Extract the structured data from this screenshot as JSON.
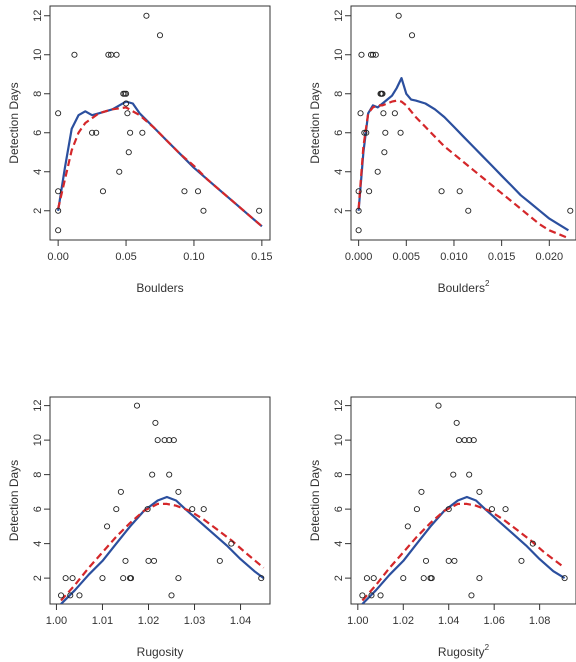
{
  "chart_data": [
    {
      "type": "scatter",
      "xlabel": "Boulders",
      "xlabel_sup": "",
      "ylabel": "Detection Days",
      "xlim": [
        -0.006,
        0.156
      ],
      "ylim": [
        0.5,
        12.5
      ],
      "xticks": [
        0.0,
        0.05,
        0.1,
        0.15
      ],
      "xtick_labels": [
        "0.00",
        "0.05",
        "0.10",
        "0.15"
      ],
      "yticks": [
        2,
        4,
        6,
        8,
        10,
        12
      ],
      "ytick_labels": [
        "2",
        "4",
        "6",
        "8",
        "10",
        "12"
      ],
      "points": [
        [
          0.0,
          1
        ],
        [
          0.0,
          2
        ],
        [
          0.0,
          3
        ],
        [
          0.0,
          7
        ],
        [
          0.012,
          10
        ],
        [
          0.025,
          6
        ],
        [
          0.028,
          6
        ],
        [
          0.033,
          3
        ],
        [
          0.037,
          10
        ],
        [
          0.039,
          10
        ],
        [
          0.043,
          10
        ],
        [
          0.045,
          4
        ],
        [
          0.048,
          8
        ],
        [
          0.049,
          8
        ],
        [
          0.05,
          8
        ],
        [
          0.05,
          7.5
        ],
        [
          0.051,
          7
        ],
        [
          0.052,
          5
        ],
        [
          0.053,
          6
        ],
        [
          0.062,
          6
        ],
        [
          0.065,
          12
        ],
        [
          0.075,
          11
        ],
        [
          0.093,
          3
        ],
        [
          0.103,
          3
        ],
        [
          0.107,
          2
        ],
        [
          0.148,
          2
        ]
      ],
      "series": [
        {
          "style": "solid",
          "color": "#2b4f9e",
          "x": [
            0.0,
            0.005,
            0.01,
            0.015,
            0.02,
            0.025,
            0.03,
            0.035,
            0.04,
            0.045,
            0.05,
            0.055,
            0.06,
            0.07,
            0.08,
            0.09,
            0.1,
            0.11,
            0.12,
            0.13,
            0.14,
            0.15
          ],
          "y": [
            2.0,
            4.2,
            6.2,
            6.9,
            7.1,
            6.9,
            7.0,
            7.1,
            7.2,
            7.4,
            7.6,
            7.5,
            7.0,
            6.3,
            5.6,
            4.9,
            4.2,
            3.6,
            3.0,
            2.4,
            1.8,
            1.2
          ]
        },
        {
          "style": "dashed",
          "color": "#d4272a",
          "x": [
            0.0,
            0.005,
            0.01,
            0.015,
            0.02,
            0.03,
            0.04,
            0.05,
            0.06,
            0.07,
            0.08,
            0.09,
            0.1,
            0.11,
            0.12,
            0.13,
            0.14,
            0.15
          ],
          "y": [
            2.1,
            3.6,
            5.1,
            6.0,
            6.5,
            7.0,
            7.2,
            7.3,
            6.9,
            6.3,
            5.6,
            4.9,
            4.3,
            3.6,
            3.0,
            2.4,
            1.8,
            1.2
          ]
        }
      ]
    },
    {
      "type": "scatter",
      "xlabel": "Boulders",
      "xlabel_sup": "2",
      "ylabel": "Detection Days",
      "xlim": [
        -0.0008,
        0.0228
      ],
      "ylim": [
        0.5,
        12.5
      ],
      "xticks": [
        0.0,
        0.005,
        0.01,
        0.015,
        0.02
      ],
      "xtick_labels": [
        "0.000",
        "0.005",
        "0.010",
        "0.015",
        "0.020"
      ],
      "yticks": [
        2,
        4,
        6,
        8,
        10,
        12
      ],
      "ytick_labels": [
        "2",
        "4",
        "6",
        "8",
        "10",
        "12"
      ],
      "points": [
        [
          0.0,
          1
        ],
        [
          0.0,
          2
        ],
        [
          0.0,
          3
        ],
        [
          0.0002,
          7
        ],
        [
          0.0003,
          10
        ],
        [
          0.0006,
          6
        ],
        [
          0.0008,
          6
        ],
        [
          0.0011,
          3
        ],
        [
          0.0013,
          10
        ],
        [
          0.0015,
          10
        ],
        [
          0.0018,
          10
        ],
        [
          0.002,
          4
        ],
        [
          0.0023,
          8
        ],
        [
          0.0024,
          8
        ],
        [
          0.0025,
          8
        ],
        [
          0.0026,
          7
        ],
        [
          0.0027,
          5
        ],
        [
          0.0028,
          6
        ],
        [
          0.0038,
          7
        ],
        [
          0.0042,
          12
        ],
        [
          0.0044,
          6
        ],
        [
          0.0056,
          11
        ],
        [
          0.0087,
          3
        ],
        [
          0.0106,
          3
        ],
        [
          0.0115,
          2
        ],
        [
          0.0222,
          2
        ]
      ],
      "series": [
        {
          "style": "solid",
          "color": "#2b4f9e",
          "x": [
            0.0,
            0.0005,
            0.001,
            0.0015,
            0.002,
            0.0025,
            0.003,
            0.0035,
            0.004,
            0.0045,
            0.005,
            0.0055,
            0.006,
            0.007,
            0.008,
            0.009,
            0.01,
            0.011,
            0.012,
            0.013,
            0.014,
            0.015,
            0.016,
            0.017,
            0.018,
            0.019,
            0.02,
            0.021,
            0.022
          ],
          "y": [
            2.0,
            5.0,
            7.0,
            7.4,
            7.3,
            7.5,
            7.7,
            7.9,
            8.3,
            8.8,
            8.0,
            7.7,
            7.65,
            7.5,
            7.2,
            6.8,
            6.3,
            5.8,
            5.3,
            4.8,
            4.3,
            3.8,
            3.3,
            2.8,
            2.4,
            2.0,
            1.6,
            1.3,
            1.0
          ]
        },
        {
          "style": "dashed",
          "color": "#d4272a",
          "x": [
            0.0,
            0.0005,
            0.001,
            0.0015,
            0.002,
            0.0025,
            0.003,
            0.0035,
            0.004,
            0.0045,
            0.005,
            0.006,
            0.007,
            0.008,
            0.009,
            0.01,
            0.011,
            0.012,
            0.013,
            0.014,
            0.015,
            0.016,
            0.017,
            0.018,
            0.019,
            0.02,
            0.021,
            0.022
          ],
          "y": [
            2.1,
            5.3,
            7.0,
            7.3,
            7.4,
            7.4,
            7.5,
            7.6,
            7.65,
            7.6,
            7.4,
            6.8,
            6.3,
            5.8,
            5.3,
            4.9,
            4.5,
            4.1,
            3.7,
            3.3,
            2.9,
            2.5,
            2.1,
            1.7,
            1.3,
            1.0,
            0.8,
            0.6
          ]
        }
      ]
    },
    {
      "type": "scatter",
      "xlabel": "Rugosity",
      "xlabel_sup": "",
      "ylabel": "Detection Days",
      "xlim": [
        0.9986,
        1.0464
      ],
      "ylim": [
        0.5,
        12.5
      ],
      "xticks": [
        1.0,
        1.01,
        1.02,
        1.03,
        1.04
      ],
      "xtick_labels": [
        "1.00",
        "1.01",
        "1.02",
        "1.03",
        "1.04"
      ],
      "yticks": [
        2,
        4,
        6,
        8,
        10,
        12
      ],
      "ytick_labels": [
        "2",
        "4",
        "6",
        "8",
        "10",
        "12"
      ],
      "points": [
        [
          1.001,
          1
        ],
        [
          1.002,
          2
        ],
        [
          1.003,
          1
        ],
        [
          1.0035,
          2
        ],
        [
          1.005,
          1
        ],
        [
          1.01,
          2
        ],
        [
          1.011,
          5
        ],
        [
          1.013,
          6
        ],
        [
          1.014,
          7
        ],
        [
          1.0145,
          2
        ],
        [
          1.015,
          3
        ],
        [
          1.016,
          2
        ],
        [
          1.0162,
          2
        ],
        [
          1.0175,
          12
        ],
        [
          1.0198,
          6
        ],
        [
          1.02,
          3
        ],
        [
          1.0208,
          8
        ],
        [
          1.0212,
          3
        ],
        [
          1.0215,
          11
        ],
        [
          1.022,
          10
        ],
        [
          1.0235,
          10
        ],
        [
          1.0245,
          10
        ],
        [
          1.0255,
          10
        ],
        [
          1.025,
          1
        ],
        [
          1.0245,
          8
        ],
        [
          1.0265,
          7
        ],
        [
          1.0265,
          2
        ],
        [
          1.0295,
          6
        ],
        [
          1.032,
          6
        ],
        [
          1.0355,
          3
        ],
        [
          1.038,
          4
        ],
        [
          1.0445,
          2
        ]
      ],
      "series": [
        {
          "style": "solid",
          "color": "#2b4f9e",
          "x": [
            1.001,
            1.004,
            1.007,
            1.01,
            1.013,
            1.016,
            1.019,
            1.022,
            1.024,
            1.026,
            1.028,
            1.031,
            1.034,
            1.037,
            1.04,
            1.043,
            1.045
          ],
          "y": [
            0.5,
            1.3,
            2.2,
            3.0,
            4.0,
            5.0,
            5.9,
            6.5,
            6.7,
            6.5,
            6.0,
            5.3,
            4.6,
            3.9,
            3.1,
            2.4,
            2.0
          ]
        },
        {
          "style": "dashed",
          "color": "#d4272a",
          "x": [
            1.001,
            1.004,
            1.007,
            1.01,
            1.013,
            1.016,
            1.019,
            1.022,
            1.024,
            1.026,
            1.029,
            1.032,
            1.035,
            1.038,
            1.041,
            1.045
          ],
          "y": [
            0.7,
            1.6,
            2.6,
            3.5,
            4.4,
            5.2,
            5.9,
            6.3,
            6.3,
            6.2,
            5.9,
            5.4,
            4.8,
            4.2,
            3.5,
            2.6
          ]
        }
      ]
    },
    {
      "type": "scatter",
      "xlabel": "Rugosity",
      "xlabel_sup": "2",
      "ylabel": "Detection Days",
      "xlim": [
        0.997,
        1.096
      ],
      "ylim": [
        0.5,
        12.5
      ],
      "xticks": [
        1.0,
        1.02,
        1.04,
        1.06,
        1.08
      ],
      "xtick_labels": [
        "1.00",
        "1.02",
        "1.04",
        "1.06",
        "1.08"
      ],
      "yticks": [
        2,
        4,
        6,
        8,
        10,
        12
      ],
      "ytick_labels": [
        "2",
        "4",
        "6",
        "8",
        "10",
        "12"
      ],
      "points": [
        [
          1.002,
          1
        ],
        [
          1.004,
          2
        ],
        [
          1.006,
          1
        ],
        [
          1.007,
          2
        ],
        [
          1.01,
          1
        ],
        [
          1.02,
          2
        ],
        [
          1.022,
          5
        ],
        [
          1.026,
          6
        ],
        [
          1.028,
          7
        ],
        [
          1.029,
          2
        ],
        [
          1.03,
          3
        ],
        [
          1.032,
          2
        ],
        [
          1.0325,
          2
        ],
        [
          1.0355,
          12
        ],
        [
          1.04,
          6
        ],
        [
          1.04,
          3
        ],
        [
          1.042,
          8
        ],
        [
          1.0425,
          3
        ],
        [
          1.0435,
          11
        ],
        [
          1.0445,
          10
        ],
        [
          1.047,
          10
        ],
        [
          1.049,
          10
        ],
        [
          1.051,
          10
        ],
        [
          1.05,
          1
        ],
        [
          1.049,
          8
        ],
        [
          1.0535,
          7
        ],
        [
          1.0535,
          2
        ],
        [
          1.059,
          6
        ],
        [
          1.065,
          6
        ],
        [
          1.072,
          3
        ],
        [
          1.077,
          4
        ],
        [
          1.091,
          2
        ]
      ],
      "series": [
        {
          "style": "solid",
          "color": "#2b4f9e",
          "x": [
            1.002,
            1.008,
            1.014,
            1.02,
            1.026,
            1.032,
            1.038,
            1.044,
            1.048,
            1.052,
            1.056,
            1.062,
            1.068,
            1.074,
            1.08,
            1.086,
            1.091
          ],
          "y": [
            0.5,
            1.3,
            2.2,
            3.0,
            4.0,
            5.0,
            5.9,
            6.5,
            6.7,
            6.5,
            6.0,
            5.3,
            4.6,
            3.9,
            3.1,
            2.4,
            2.0
          ]
        },
        {
          "style": "dashed",
          "color": "#d4272a",
          "x": [
            1.002,
            1.008,
            1.014,
            1.02,
            1.026,
            1.032,
            1.038,
            1.044,
            1.048,
            1.052,
            1.058,
            1.064,
            1.07,
            1.076,
            1.082,
            1.091
          ],
          "y": [
            0.7,
            1.6,
            2.6,
            3.5,
            4.4,
            5.2,
            5.9,
            6.3,
            6.3,
            6.2,
            5.9,
            5.4,
            4.8,
            4.2,
            3.5,
            2.6
          ]
        }
      ]
    }
  ]
}
